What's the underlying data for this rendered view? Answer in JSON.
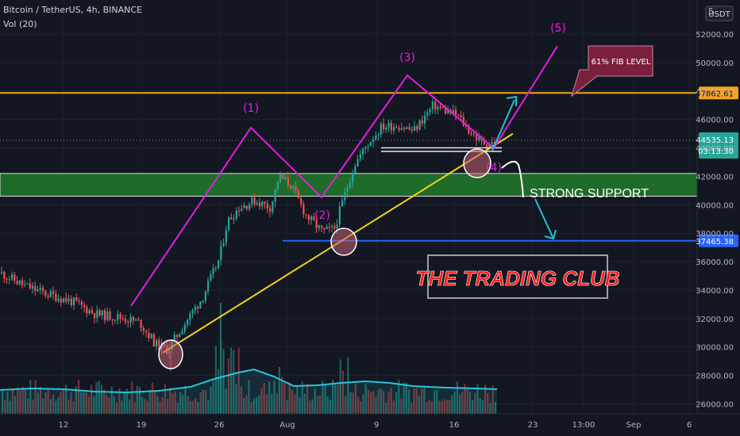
{
  "header": {
    "symbol_line": "Bitcoin / TetherUS, 4h, BINANCE",
    "volume_line": "Vol (20)"
  },
  "price_axis": {
    "currency_button": "USDT",
    "top_partial_label": "5"
  },
  "colors": {
    "background": "#131722",
    "bull": "#26a69a",
    "bear": "#ef5350",
    "wave": "#e11fe1",
    "fib": "#f7a21b",
    "trend": "#f5d11a",
    "support_zone": "#1f6b2a",
    "blue_line": "#2962ff",
    "cyan_arrow": "#20c1d6",
    "volume_ma": "#26c6da",
    "callout": "#7a1f3d",
    "title_red": "#ff1a1a"
  },
  "annotations": {
    "waves": [
      "(1)",
      "(2)",
      "(3)",
      "(4)",
      "(5)"
    ],
    "fib_callout": "61% FIB LEVEL",
    "strong_support": "STRONG SUPPORT",
    "watermark": "THE TRADING CLUB"
  },
  "chart_data": {
    "type": "candlestick",
    "title": "Bitcoin / TetherUS, 4h, BINANCE",
    "x_ticks": [
      "12",
      "19",
      "26",
      "Aug",
      "9",
      "16",
      "23",
      "13:00",
      "Sep",
      "6"
    ],
    "y_ticks": [
      26000,
      28000,
      30000,
      32000,
      34000,
      36000,
      38000,
      40000,
      42000,
      44000,
      46000,
      48000,
      50000,
      52000
    ],
    "y_tick_labels": [
      "26000.00",
      "28000.00",
      "30000.00",
      "32000.00",
      "34000.00",
      "36000.00",
      "38000.00",
      "40000.00",
      "42000.00",
      "44000.00",
      "46000.00",
      "48000.00",
      "50000.00",
      "52000.00"
    ],
    "ylim": [
      25300,
      54400
    ],
    "price_labels": [
      {
        "text": "47862.61",
        "value": 47862.61,
        "kind": "fib-level"
      },
      {
        "text": "44535.13",
        "value": 44535.13,
        "kind": "last-price"
      },
      {
        "text": "03:13:30",
        "kind": "countdown"
      },
      {
        "text": "37465.38",
        "value": 37465.38,
        "kind": "support-line"
      }
    ],
    "horizontal_levels": [
      {
        "value": 47862.61,
        "label": "61% FIB LEVEL"
      },
      {
        "value": 37465.38,
        "label": ""
      }
    ],
    "support_zone": {
      "from": 40600,
      "to": 42200,
      "label": "STRONG SUPPORT"
    },
    "approximate_path": [
      {
        "date": "Jul 5",
        "close": 35000
      },
      {
        "date": "Jul 8",
        "close": 33600
      },
      {
        "date": "Jul 12",
        "close": 33000
      },
      {
        "date": "Jul 15",
        "close": 32100
      },
      {
        "date": "Jul 19",
        "close": 31900
      },
      {
        "date": "Jul 21",
        "close": 29900
      },
      {
        "date": "Jul 24",
        "close": 33900
      },
      {
        "date": "Jul 26",
        "close": 38500
      },
      {
        "date": "Jul 28",
        "close": 40200
      },
      {
        "date": "Jul 31",
        "close": 40000
      },
      {
        "date": "Aug 1",
        "close": 42000
      },
      {
        "date": "Aug 4",
        "close": 39000
      },
      {
        "date": "Aug 6",
        "close": 38200
      },
      {
        "date": "Aug 8",
        "close": 43000
      },
      {
        "date": "Aug 10",
        "close": 45800
      },
      {
        "date": "Aug 12",
        "close": 45200
      },
      {
        "date": "Aug 14",
        "close": 47500
      },
      {
        "date": "Aug 16",
        "close": 46000
      },
      {
        "date": "Aug 18",
        "close": 44200
      },
      {
        "date": "Aug 19",
        "close": 44535
      }
    ]
  }
}
